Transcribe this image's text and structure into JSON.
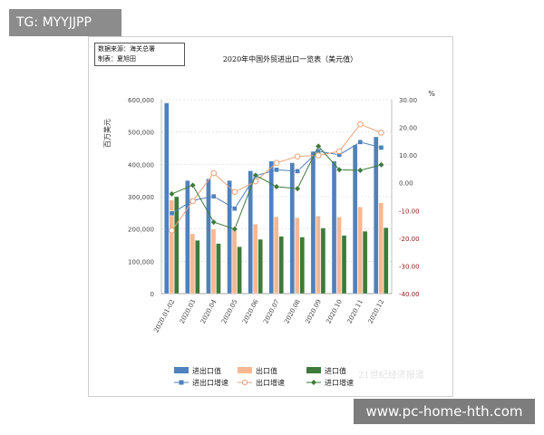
{
  "badge": {
    "text": "TG: MYYJJPP"
  },
  "source_box": {
    "line1": "数据来源：海关总署",
    "line2": "制表：夏旭田"
  },
  "watermark": {
    "text": "www.pc-home-hth.com",
    "logo_text": "21世纪经济报道"
  },
  "chart_data": {
    "type": "bar",
    "title": "2020年中国外贸进出口一览表（美元值）",
    "categories": [
      "2020.01-02",
      "2020.03",
      "2020.04",
      "2020.05",
      "2020.06",
      "2020.07",
      "2020.08",
      "2020.09",
      "2020.10",
      "2020.11",
      "2020.12"
    ],
    "ylabel_left": "百万美元",
    "ylabel_right": "%",
    "ylim_left": [
      0,
      600000
    ],
    "yticks_left": [
      "0",
      "100,000",
      "200,000",
      "300,000",
      "400,000",
      "500,000",
      "600,000"
    ],
    "ylim_right": [
      -40,
      30
    ],
    "yticks_right": [
      "-40.00",
      "-30.00",
      "-20.00",
      "-10.00",
      "0.00",
      "10.00",
      "20.00",
      "30.00"
    ],
    "bar_series": [
      {
        "name": "进出口值",
        "color": "#4f81bd",
        "values": [
          590000,
          350000,
          355000,
          350000,
          380000,
          410000,
          405000,
          440000,
          410000,
          460000,
          485000
        ]
      },
      {
        "name": "出口值",
        "color": "#f6b891",
        "values": [
          290000,
          185000,
          200000,
          205000,
          215000,
          238000,
          235000,
          240000,
          237000,
          268000,
          281000
        ]
      },
      {
        "name": "进口值",
        "color": "#3e7a3b",
        "values": [
          300000,
          165000,
          155000,
          145000,
          168000,
          177000,
          175000,
          203000,
          180000,
          193000,
          204000
        ]
      }
    ],
    "line_series": [
      {
        "name": "进出口增速",
        "color": "#4f81bd",
        "marker": "square",
        "values": [
          -11.0,
          -6.4,
          -4.9,
          -9.3,
          2.5,
          4.7,
          4.2,
          11.4,
          10.1,
          14.7,
          12.7
        ]
      },
      {
        "name": "出口增速",
        "color": "#e8a27a",
        "marker": "circle",
        "values": [
          -17.2,
          -6.6,
          3.5,
          -3.3,
          0.5,
          7.2,
          9.5,
          9.9,
          11.4,
          21.1,
          18.1
        ]
      },
      {
        "name": "进口增速",
        "color": "#3e7a3b",
        "marker": "diamond",
        "values": [
          -4.0,
          -0.9,
          -14.2,
          -16.7,
          2.7,
          -1.4,
          -2.1,
          13.2,
          4.7,
          4.5,
          6.5
        ]
      }
    ],
    "grid": true,
    "legend_position": "bottom"
  }
}
